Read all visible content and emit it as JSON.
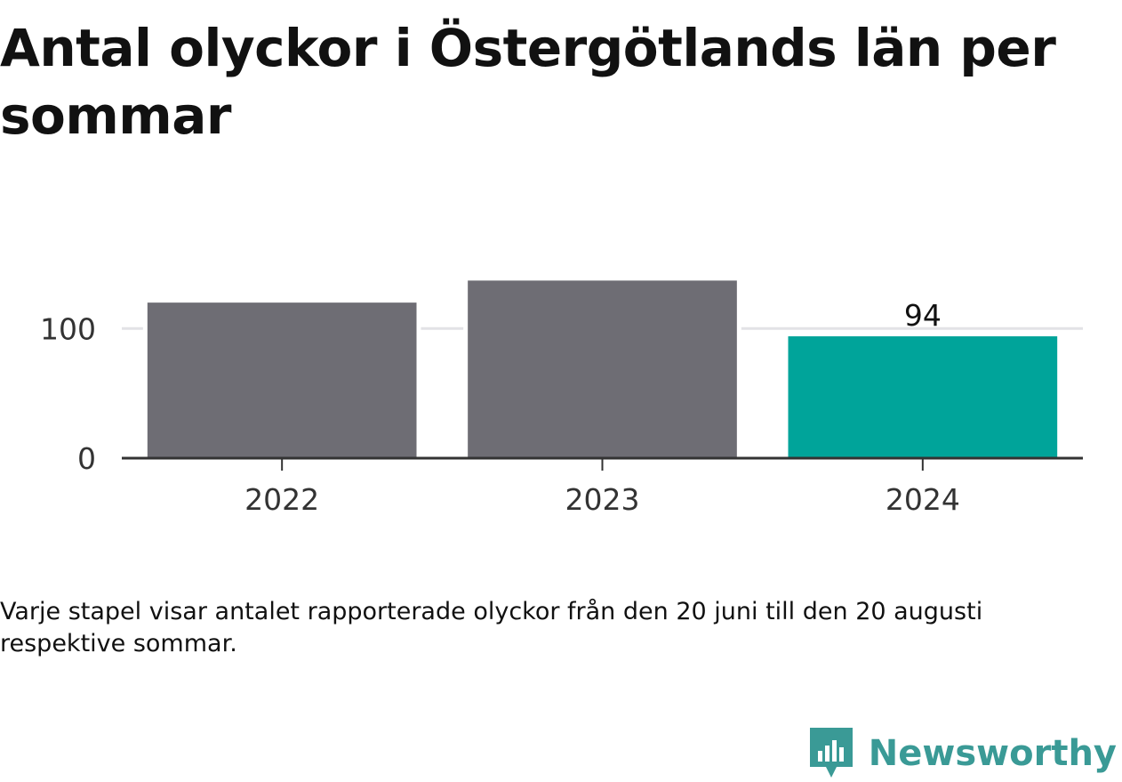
{
  "header": {
    "title": "Antal olyckor i Östergötlands län per sommar"
  },
  "chart_data": {
    "type": "bar",
    "categories": [
      "2022",
      "2023",
      "2024"
    ],
    "values": [
      120,
      137,
      94
    ],
    "data_labels": [
      "",
      "",
      "94"
    ],
    "ylim": [
      0,
      140
    ],
    "yticks": [
      0,
      100
    ],
    "ytick_labels": [
      "0",
      "100"
    ],
    "grid": true,
    "colors": {
      "default": "#6e6d74",
      "highlight": "#00a49a",
      "grid": "#e2e2e6",
      "axis": "#333333"
    },
    "highlight_index": 2
  },
  "footer": {
    "caption": "Varje stapel visar antalet rapporterade olyckor från den 20 juni till den 20 augusti respektive sommar."
  },
  "brand": {
    "name": "Newsworthy",
    "icon": "newsworthy-logo-icon",
    "color": "#3a9a96"
  }
}
